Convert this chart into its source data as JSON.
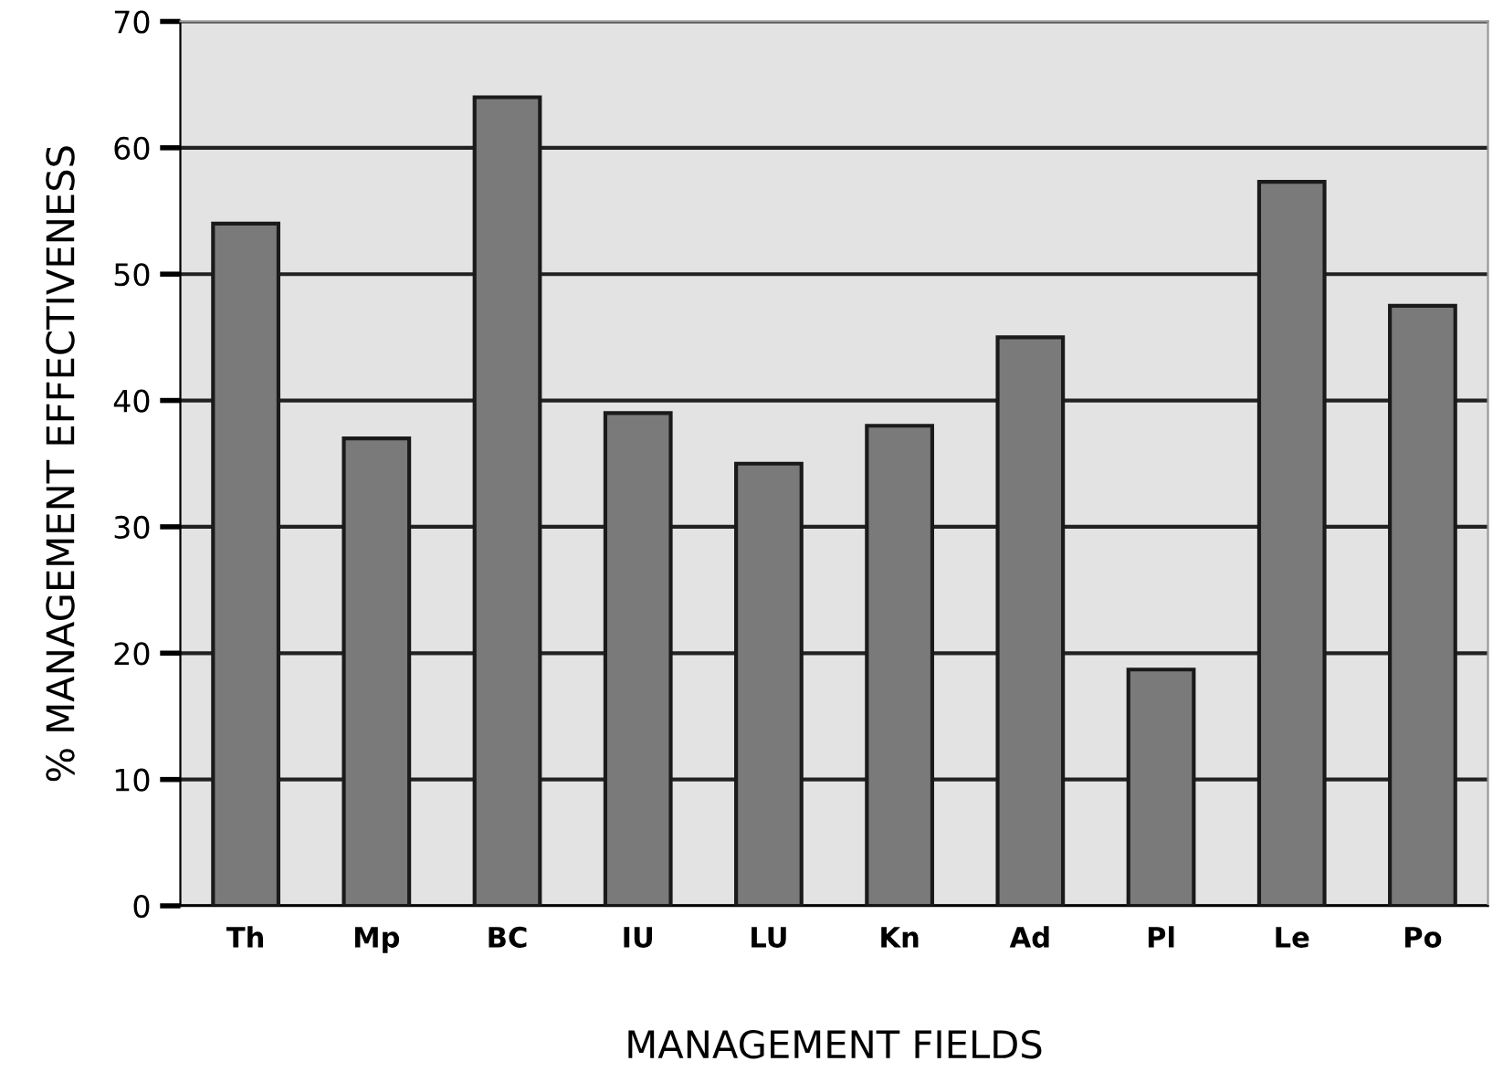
{
  "chart_data": {
    "type": "bar",
    "xlabel": "MANAGEMENT FIELDS",
    "ylabel": "% MANAGEMENT EFFECTIVENESS",
    "categories": [
      "Th",
      "Mp",
      "BC",
      "IU",
      "LU",
      "Kn",
      "Ad",
      "Pl",
      "Le",
      "Po"
    ],
    "values": [
      54,
      37,
      64,
      39,
      35,
      38,
      45,
      18.7,
      57.3,
      47.5
    ],
    "color": "#7a7a7a",
    "ylim": [
      0,
      70
    ],
    "yticks": [
      0,
      10,
      20,
      30,
      40,
      50,
      60,
      70
    ],
    "grid": "y"
  }
}
